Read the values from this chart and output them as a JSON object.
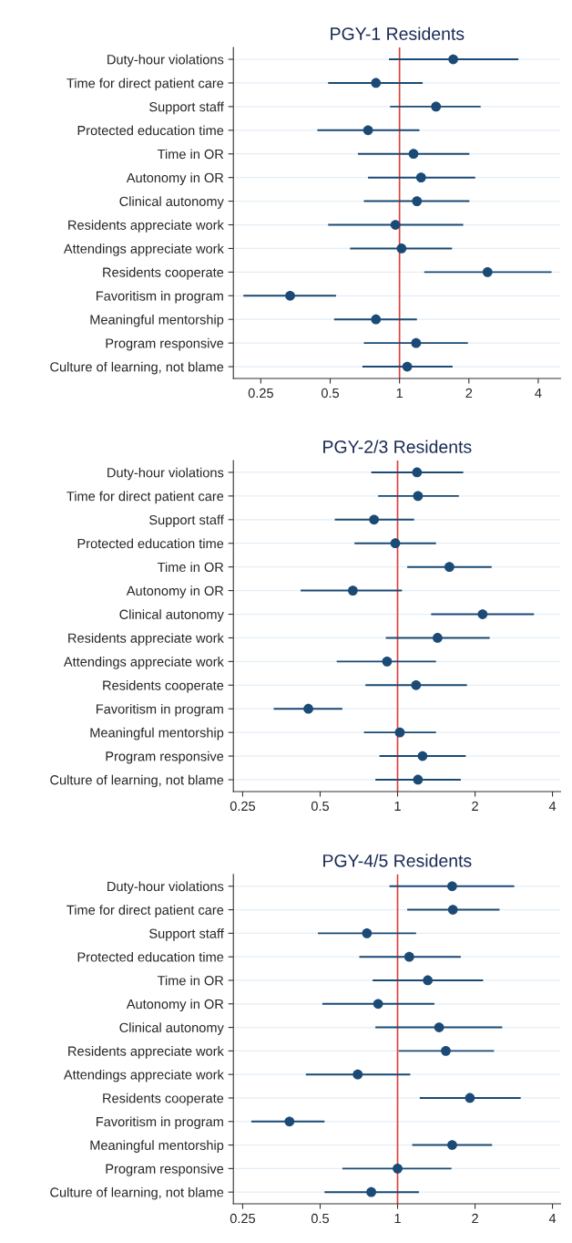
{
  "chart_data": [
    {
      "type": "scatter",
      "title": "PGY-1 Residents",
      "orientation": "horizontal",
      "log": "x",
      "grid": "y",
      "marker": "circle",
      "color": "#1a4a75",
      "categories": [
        "Duty-hour violations",
        "Time for direct patient care",
        "Support staff",
        "Protected education time",
        "Time in OR",
        "Autonomy in OR",
        "Clinical autonomy",
        "Residents appreciate work",
        "Attendings appreciate work",
        "Residents cooperate",
        "Favoritism in program",
        "Meaningful mentorship",
        "Program responsive",
        "Culture of learning, not blame"
      ],
      "values": [
        1.71,
        0.79,
        1.44,
        0.73,
        1.15,
        1.24,
        1.19,
        0.96,
        1.02,
        2.41,
        0.335,
        0.79,
        1.18,
        1.08
      ],
      "errors": [
        [
          0.9,
          3.28
        ],
        [
          0.49,
          1.26
        ],
        [
          0.91,
          2.25
        ],
        [
          0.44,
          1.22
        ],
        [
          0.66,
          2.01
        ],
        [
          0.73,
          2.13
        ],
        [
          0.7,
          2.01
        ],
        [
          0.49,
          1.89
        ],
        [
          0.61,
          1.69
        ],
        [
          1.28,
          4.57
        ],
        [
          0.21,
          0.53
        ],
        [
          0.52,
          1.19
        ],
        [
          0.7,
          1.98
        ],
        [
          0.69,
          1.7
        ]
      ],
      "xlim": [
        0.19,
        5.0
      ],
      "xticks": [
        0.25,
        0.5,
        1,
        2,
        4
      ],
      "ref_lines": [
        {
          "axis": "x",
          "value": 1,
          "color": "#e0413a"
        }
      ]
    },
    {
      "type": "scatter",
      "title": "PGY-2/3 Residents",
      "orientation": "horizontal",
      "log": "x",
      "grid": "y",
      "marker": "circle",
      "color": "#1a4a75",
      "categories": [
        "Duty-hour violations",
        "Time for direct patient care",
        "Support staff",
        "Protected education time",
        "Time in OR",
        "Autonomy in OR",
        "Clinical autonomy",
        "Residents appreciate work",
        "Attendings appreciate work",
        "Residents cooperate",
        "Favoritism in program",
        "Meaningful mentorship",
        "Program responsive",
        "Culture of learning, not blame"
      ],
      "values": [
        1.19,
        1.2,
        0.81,
        0.98,
        1.59,
        0.67,
        2.14,
        1.43,
        0.91,
        1.18,
        0.45,
        1.02,
        1.25,
        1.2
      ],
      "errors": [
        [
          0.79,
          1.8
        ],
        [
          0.84,
          1.73
        ],
        [
          0.57,
          1.16
        ],
        [
          0.68,
          1.41
        ],
        [
          1.09,
          2.32
        ],
        [
          0.42,
          1.04
        ],
        [
          1.35,
          3.39
        ],
        [
          0.9,
          2.28
        ],
        [
          0.58,
          1.41
        ],
        [
          0.75,
          1.86
        ],
        [
          0.33,
          0.61
        ],
        [
          0.74,
          1.41
        ],
        [
          0.85,
          1.84
        ],
        [
          0.82,
          1.76
        ]
      ],
      "xlim": [
        0.23,
        4.3
      ],
      "xticks": [
        0.25,
        0.5,
        1,
        2,
        4
      ],
      "ref_lines": [
        {
          "axis": "x",
          "value": 1,
          "color": "#e0413a"
        }
      ]
    },
    {
      "type": "scatter",
      "title": "PGY-4/5 Residents",
      "orientation": "horizontal",
      "log": "x",
      "grid": "y",
      "marker": "circle",
      "color": "#1a4a75",
      "categories": [
        "Duty-hour violations",
        "Time for direct patient care",
        "Support staff",
        "Protected education time",
        "Time in OR",
        "Autonomy in OR",
        "Clinical autonomy",
        "Residents appreciate work",
        "Attendings appreciate work",
        "Residents cooperate",
        "Favoritism in program",
        "Meaningful mentorship",
        "Program responsive",
        "Culture of learning, not blame"
      ],
      "values": [
        1.63,
        1.64,
        0.76,
        1.11,
        1.31,
        0.84,
        1.45,
        1.54,
        0.7,
        1.91,
        0.38,
        1.63,
        1.0,
        0.79
      ],
      "errors": [
        [
          0.93,
          2.84
        ],
        [
          1.09,
          2.49
        ],
        [
          0.49,
          1.18
        ],
        [
          0.71,
          1.76
        ],
        [
          0.8,
          2.15
        ],
        [
          0.51,
          1.39
        ],
        [
          0.82,
          2.55
        ],
        [
          1.01,
          2.37
        ],
        [
          0.44,
          1.12
        ],
        [
          1.22,
          3.01
        ],
        [
          0.27,
          0.52
        ],
        [
          1.14,
          2.33
        ],
        [
          0.61,
          1.62
        ],
        [
          0.52,
          1.21
        ]
      ],
      "xlim": [
        0.23,
        4.3
      ],
      "xticks": [
        0.25,
        0.5,
        1,
        2,
        4
      ],
      "ref_lines": [
        {
          "axis": "x",
          "value": 1,
          "color": "#e0413a"
        }
      ]
    }
  ]
}
